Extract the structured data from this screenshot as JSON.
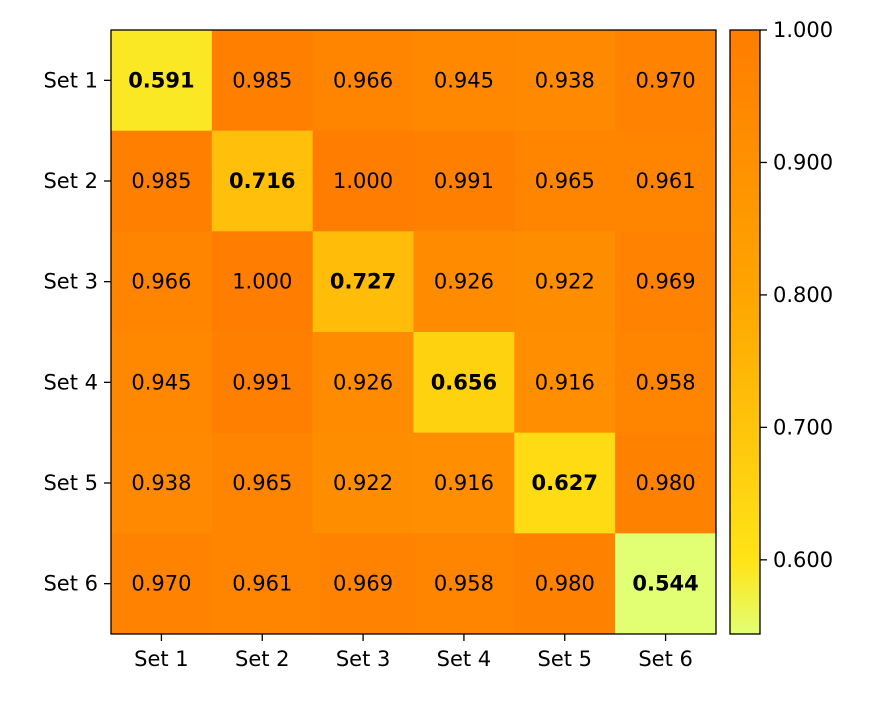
{
  "chart_data": {
    "type": "heatmap",
    "title": "",
    "xlabel": "",
    "ylabel": "",
    "x_categories": [
      "Set 1",
      "Set 2",
      "Set 3",
      "Set 4",
      "Set 5",
      "Set 6"
    ],
    "y_categories": [
      "Set 1",
      "Set 2",
      "Set 3",
      "Set 4",
      "Set 5",
      "Set 6"
    ],
    "values": [
      [
        0.591,
        0.985,
        0.966,
        0.945,
        0.938,
        0.97
      ],
      [
        0.985,
        0.716,
        1.0,
        0.991,
        0.965,
        0.961
      ],
      [
        0.966,
        1.0,
        0.727,
        0.926,
        0.922,
        0.969
      ],
      [
        0.945,
        0.991,
        0.926,
        0.656,
        0.916,
        0.958
      ],
      [
        0.938,
        0.965,
        0.922,
        0.916,
        0.627,
        0.98
      ],
      [
        0.97,
        0.961,
        0.969,
        0.958,
        0.98,
        0.544
      ]
    ],
    "diagonal_bold": true,
    "value_format": "0.000",
    "colorbar": {
      "min": 0.544,
      "max": 1.0,
      "ticks": [
        0.6,
        0.7,
        0.8,
        0.9,
        1.0
      ],
      "tick_labels": [
        "0.600",
        "0.700",
        "0.800",
        "0.900",
        "1.000"
      ],
      "colors": [
        "#e2ff73",
        "#ffe417",
        "#ffa500",
        "#ff7d00"
      ],
      "position": "right"
    },
    "grid": false
  }
}
